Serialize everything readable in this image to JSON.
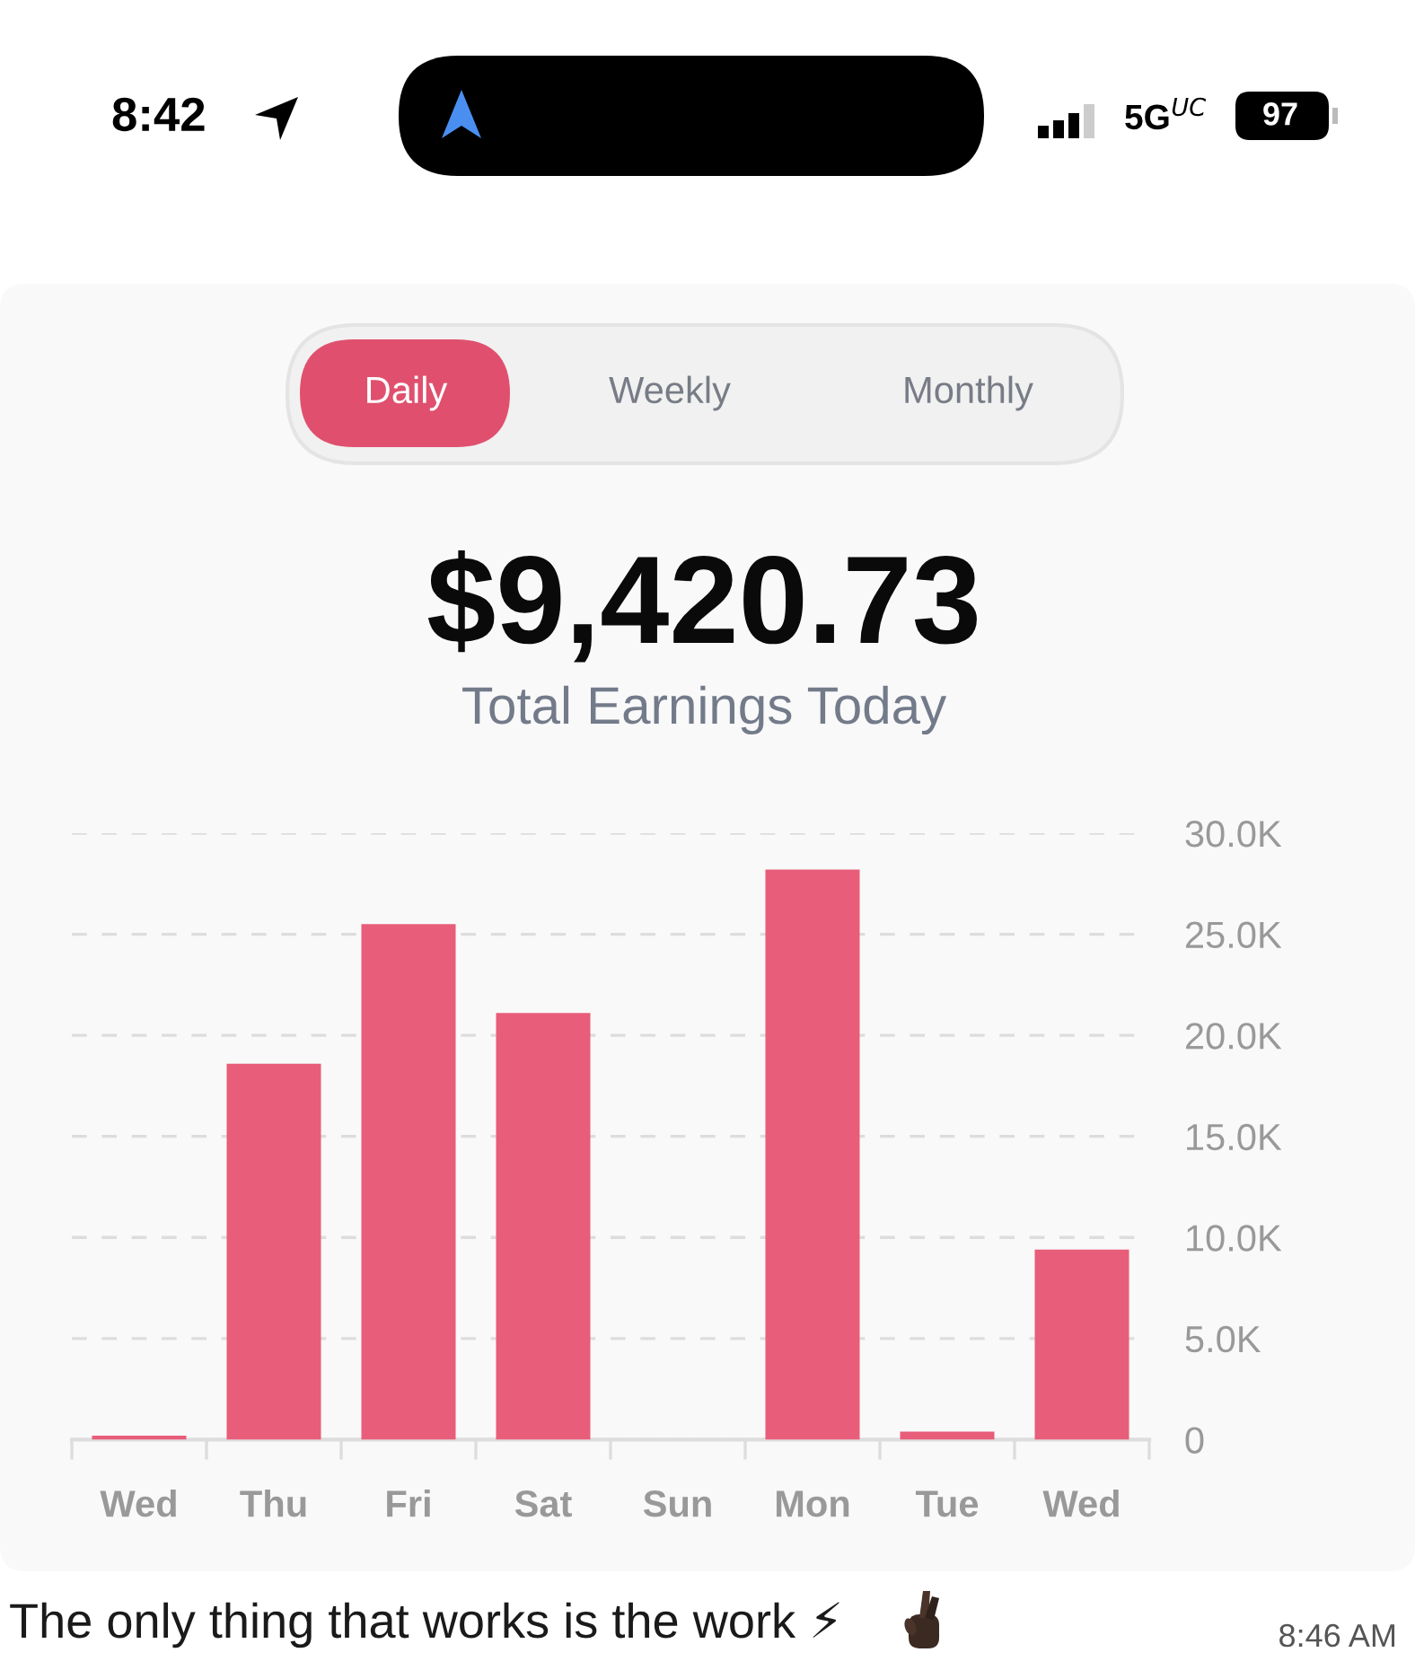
{
  "chart_data": {
    "type": "bar",
    "title": "$9,420.73",
    "subtitle": "Total Earnings Today",
    "categories": [
      "Wed",
      "Thu",
      "Fri",
      "Sat",
      "Sun",
      "Mon",
      "Tue",
      "Wed"
    ],
    "values": [
      200,
      18600,
      25500,
      21100,
      0,
      28200,
      400,
      9400
    ],
    "color": "#e85d79",
    "ylim": [
      0,
      30000
    ],
    "yticks": [
      {
        "value": 0,
        "label": "0"
      },
      {
        "value": 5000,
        "label": "5.0K"
      },
      {
        "value": 10000,
        "label": "10.0K"
      },
      {
        "value": 15000,
        "label": "15.0K"
      },
      {
        "value": 20000,
        "label": "20.0K"
      },
      {
        "value": 25000,
        "label": "25.0K"
      },
      {
        "value": 30000,
        "label": "30.0K"
      }
    ],
    "grid": "y",
    "annotations": [
      "Daily",
      "Weekly",
      "Monthly",
      "8:42",
      "5G$^{UC}$",
      "97",
      "The only thing that works is the work ⚡",
      "8:46 AM"
    ]
  }
}
